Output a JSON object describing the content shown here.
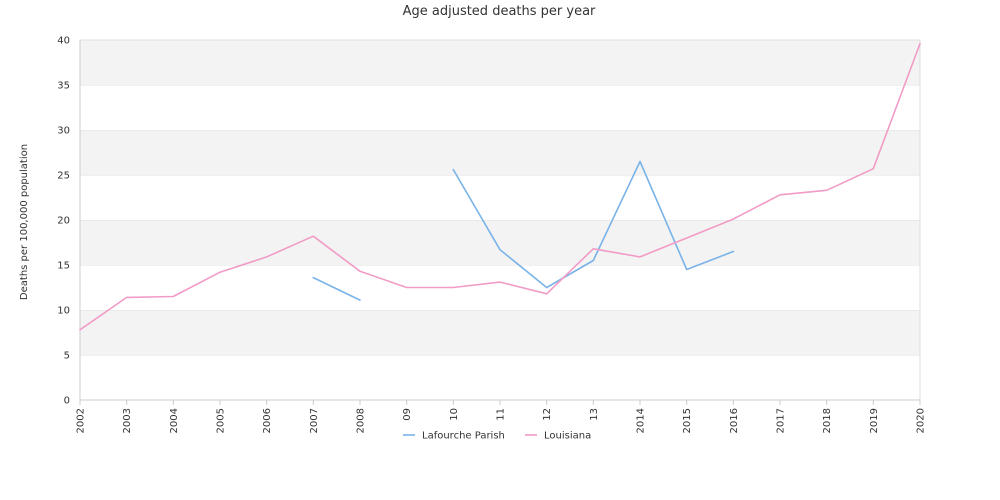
{
  "chart_data": {
    "type": "line",
    "title": "Age adjusted deaths per year",
    "xlabel": "",
    "ylabel": "Deaths per 100,000 population",
    "categories": [
      "2002",
      "2003",
      "2004",
      "2005",
      "2006",
      "2007",
      "2008",
      "09",
      "10",
      "11",
      "12",
      "13",
      "2014",
      "2015",
      "2016",
      "2017",
      "2018",
      "2019",
      "2020"
    ],
    "ylim": [
      0,
      40
    ],
    "yticks": [
      0,
      5,
      10,
      15,
      20,
      25,
      30,
      35,
      40
    ],
    "grid": "alternating horizontal bands",
    "legend_position": "bottom-center",
    "series": [
      {
        "name": "Lafourche Parish",
        "color": "#7ab3e8",
        "values": [
          null,
          null,
          null,
          null,
          null,
          13.6,
          11.1,
          null,
          25.6,
          16.7,
          12.5,
          15.5,
          26.5,
          14.5,
          16.5,
          null,
          null,
          null,
          null
        ]
      },
      {
        "name": "Louisiana",
        "color": "#f19bc7",
        "values": [
          7.8,
          11.4,
          11.5,
          14.2,
          15.9,
          18.2,
          14.3,
          12.5,
          12.5,
          13.1,
          11.8,
          16.8,
          15.9,
          18.0,
          20.1,
          22.8,
          23.3,
          25.7,
          39.6
        ]
      }
    ]
  }
}
